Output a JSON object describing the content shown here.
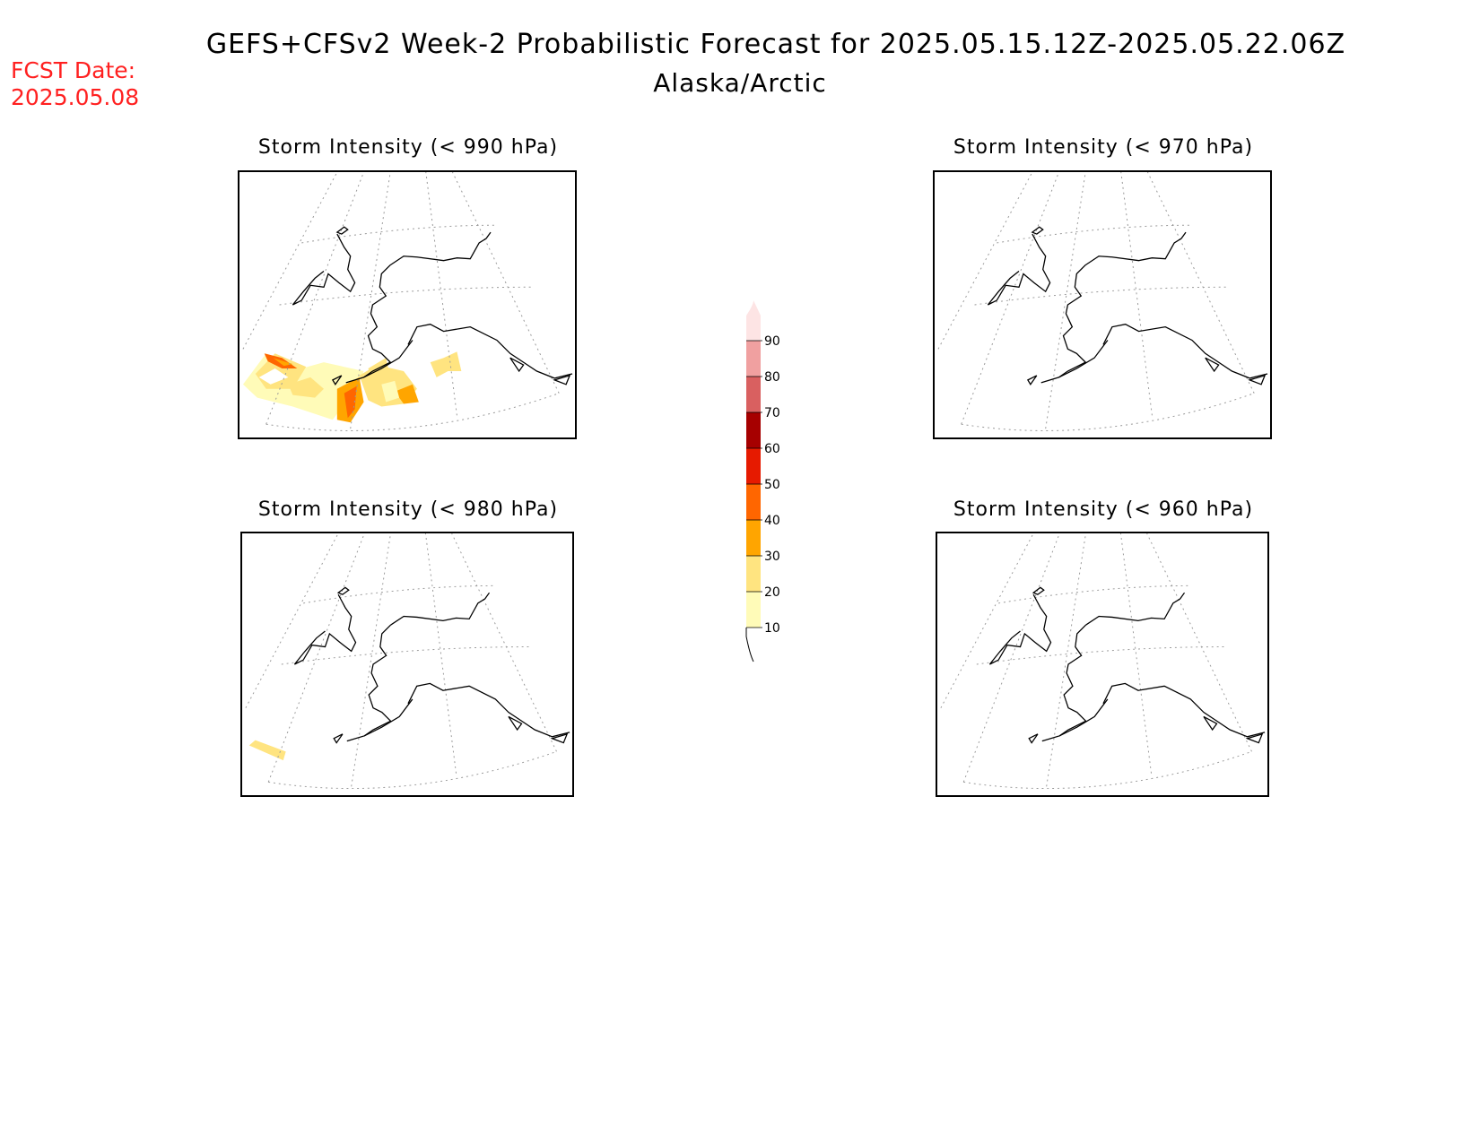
{
  "header": {
    "title": "GEFS+CFSv2 Week-2 Probabilistic Forecast for 2025.05.15.12Z-2025.05.22.06Z",
    "subtitle": "Alaska/Arctic",
    "fcst_label": "FCST Date:",
    "fcst_date": "2025.05.08"
  },
  "panels": [
    {
      "id": "p990",
      "title": "Storm Intensity (< 990 hPa)",
      "threshold_hpa": 990,
      "has_shading": true
    },
    {
      "id": "p970",
      "title": "Storm Intensity (< 970 hPa)",
      "threshold_hpa": 970,
      "has_shading": false
    },
    {
      "id": "p980",
      "title": "Storm Intensity (< 980 hPa)",
      "threshold_hpa": 980,
      "has_shading": true
    },
    {
      "id": "p960",
      "title": "Storm Intensity (< 960 hPa)",
      "threshold_hpa": 960,
      "has_shading": false
    }
  ],
  "colorbar": {
    "levels": [
      10,
      20,
      30,
      40,
      50,
      60,
      70,
      80,
      90
    ],
    "labels": [
      "10",
      "20",
      "30",
      "40",
      "50",
      "60",
      "70",
      "80",
      "90"
    ],
    "colors": [
      "#fffbb8",
      "#ffe480",
      "#ffa500",
      "#ff6600",
      "#e61a00",
      "#a60000",
      "#d96060",
      "#f0a0a0",
      "#fde4e4"
    ]
  },
  "colors": {
    "fcst_text": "#ff2020",
    "coast": "#000000",
    "grid": "#999999"
  }
}
